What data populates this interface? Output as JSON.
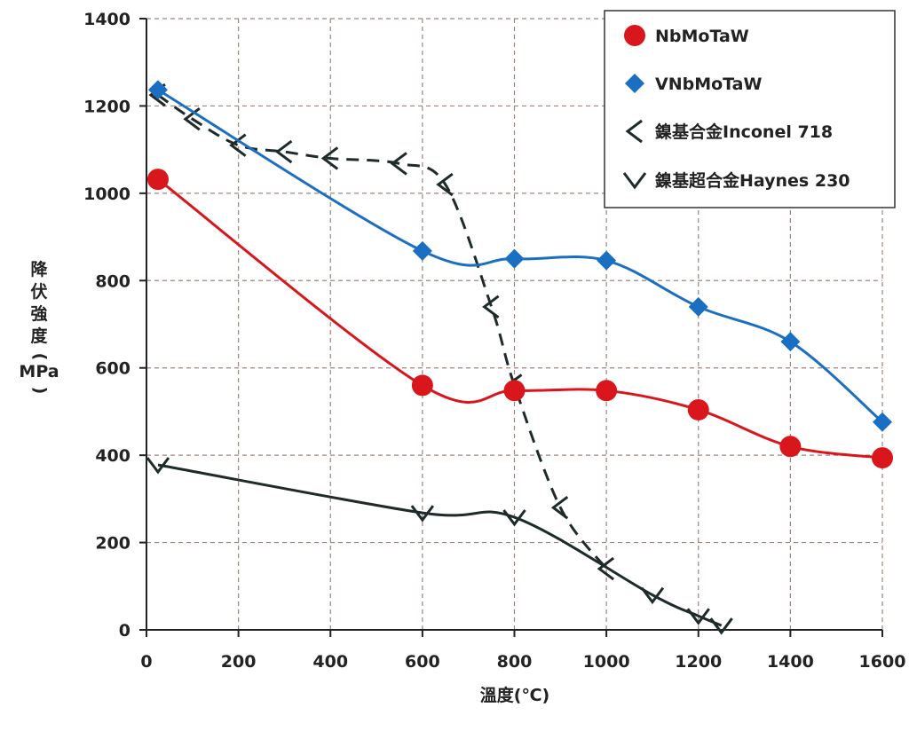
{
  "chart_data": {
    "type": "line",
    "title": "",
    "xlabel": "溫度(℃)",
    "ylabel_chars": [
      "降",
      "伏",
      "強",
      "度",
      "(",
      "MPa",
      ")"
    ],
    "xlim": [
      0,
      1600
    ],
    "ylim": [
      0,
      1400
    ],
    "x_ticks": [
      "0",
      "200",
      "400",
      "600",
      "800",
      "1000",
      "1200",
      "1400",
      "1600"
    ],
    "y_ticks": [
      "0",
      "200",
      "400",
      "600",
      "800",
      "1000",
      "1200",
      "1400"
    ],
    "grid": true,
    "legend_position": "top-right",
    "series": [
      {
        "name": "NbMoTaW",
        "color": "#d9161c",
        "marker": "circle",
        "x": [
          25,
          600,
          800,
          1000,
          1200,
          1400,
          1600
        ],
        "y": [
          1032,
          560,
          548,
          548,
          504,
          420,
          394
        ]
      },
      {
        "name": "VNbMoTaW",
        "color": "#1b6fc2",
        "marker": "diamond",
        "x": [
          25,
          600,
          800,
          1000,
          1200,
          1400,
          1600
        ],
        "y": [
          1237,
          868,
          850,
          846,
          740,
          660,
          476
        ]
      },
      {
        "name": "鎳基合金Inconel 718",
        "color": "#1f2a2a",
        "marker": "chevron-left",
        "linestyle": "dashed",
        "x": [
          25,
          100,
          200,
          300,
          400,
          550,
          650,
          750,
          800,
          900,
          1000
        ],
        "y": [
          1225,
          1170,
          1110,
          1095,
          1080,
          1068,
          1020,
          740,
          560,
          280,
          140
        ]
      },
      {
        "name": "鎳基超合金Haynes 230",
        "color": "#1f2a2a",
        "marker": "chevron-right",
        "linestyle": "solid",
        "x": [
          25,
          600,
          800,
          1100,
          1200,
          1250
        ],
        "y": [
          378,
          268,
          258,
          80,
          32,
          10
        ]
      }
    ]
  }
}
